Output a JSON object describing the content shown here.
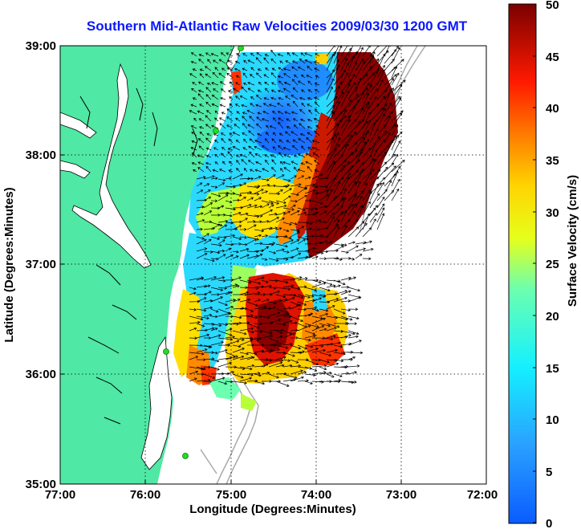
{
  "title": "Southern Mid-Atlantic Raw Velocities 2009/03/30 1200 GMT",
  "map": {
    "xlabel": "Longitude (Degrees:Minutes)",
    "ylabel": "Latitude (Degrees:Minutes)",
    "lon_range": [
      -77,
      -72
    ],
    "lat_range": [
      35,
      39
    ],
    "x_ticks": [
      "77:00",
      "76:00",
      "75:00",
      "74:00",
      "73:00",
      "72:00"
    ],
    "y_ticks": [
      "39:00",
      "38:00",
      "37:00",
      "36:00",
      "35:00"
    ],
    "grid": "dotted",
    "colors": {
      "land": "#4fe8a4",
      "ocean": "#ffffff",
      "coast": "#000000",
      "bathymetry": "#aaaaaa",
      "station": "#22dd22"
    }
  },
  "colorbar": {
    "label": "Surface Velocity (cm/s)",
    "ticks": [
      "50",
      "45",
      "40",
      "35",
      "30",
      "25",
      "20",
      "15",
      "10",
      "5",
      "0"
    ],
    "range": [
      0,
      50
    ],
    "colormap": "jet"
  }
}
